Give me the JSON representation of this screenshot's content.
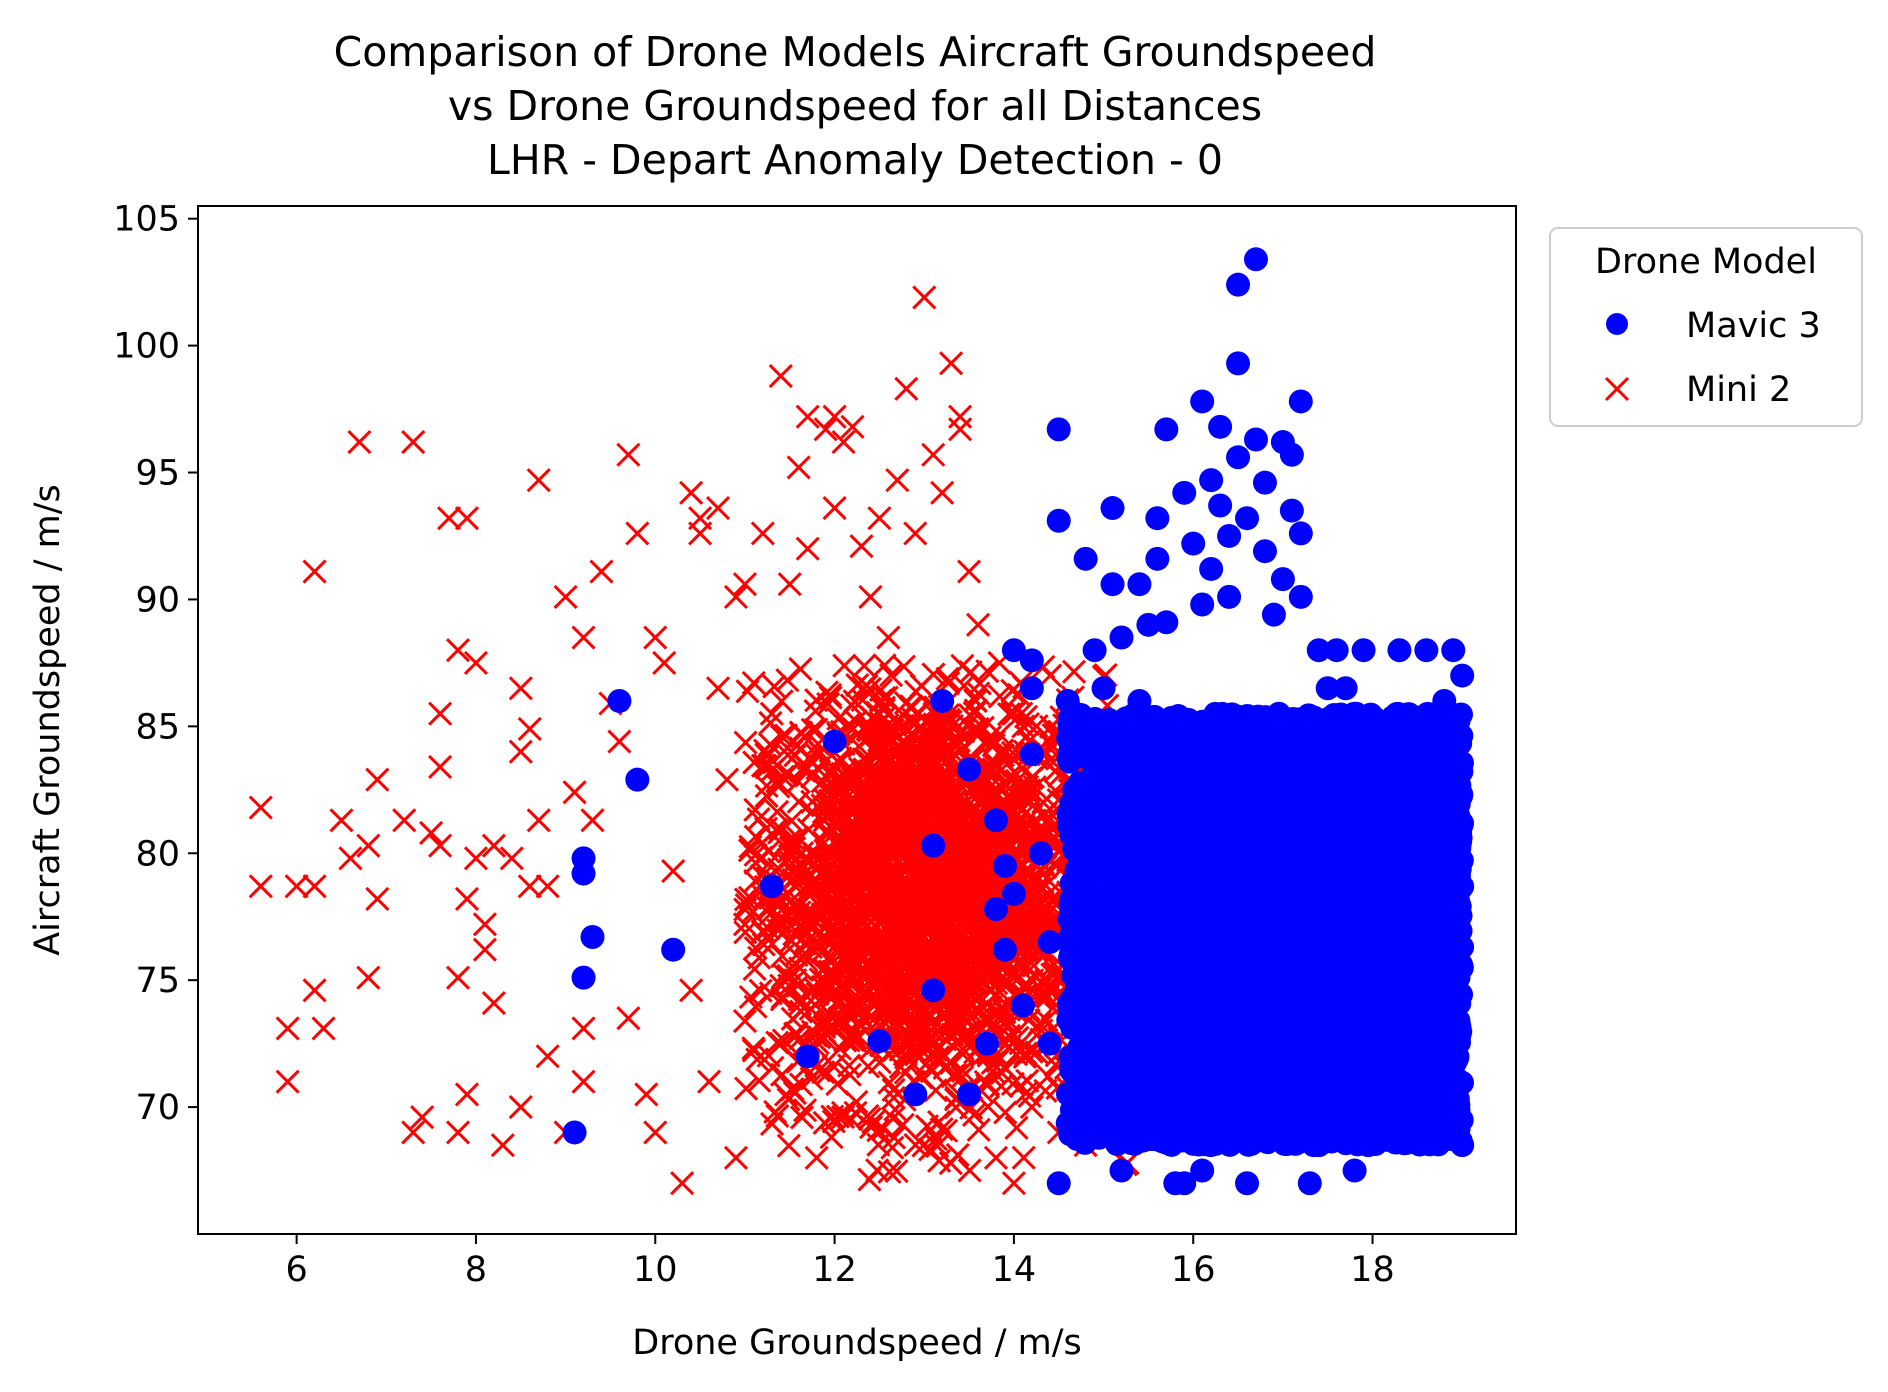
{
  "chart_data": {
    "type": "scatter",
    "title_lines": [
      "Comparison of Drone Models Aircraft Groundspeed",
      "vs Drone Groundspeed for all Distances",
      "LHR - Depart Anomaly Detection - 0"
    ],
    "xlabel": "Drone Groundspeed / m/s",
    "ylabel": "Aircraft Groundspeed / m/s",
    "xlim": [
      4.9,
      19.6
    ],
    "ylim": [
      65.0,
      105.5
    ],
    "x_ticks": [
      6,
      8,
      10,
      12,
      14,
      16,
      18
    ],
    "x_tick_labels": [
      "6",
      "8",
      "10",
      "12",
      "14",
      "16",
      "18"
    ],
    "y_ticks": [
      70,
      75,
      80,
      85,
      90,
      95,
      100,
      105
    ],
    "y_tick_labels": [
      "70",
      "75",
      "80",
      "85",
      "90",
      "95",
      "100",
      "105"
    ],
    "grid": false,
    "legend": {
      "title": "Drone Model",
      "placement": "outside-upper-right",
      "entries": [
        {
          "name": "Mavic 3",
          "marker": "circle",
          "color": "#0000ff"
        },
        {
          "name": "Mini 2",
          "marker": "x",
          "color": "#ff0000"
        }
      ]
    },
    "series": [
      {
        "name": "Mavic 3",
        "marker": "circle",
        "color": "#0000ff",
        "points": [
          [
            9.1,
            69.0
          ],
          [
            9.2,
            79.8
          ],
          [
            9.2,
            79.2
          ],
          [
            9.3,
            76.7
          ],
          [
            9.2,
            75.1
          ],
          [
            9.6,
            86.0
          ],
          [
            9.8,
            82.9
          ],
          [
            10.2,
            76.2
          ],
          [
            11.3,
            78.7
          ],
          [
            11.7,
            72.0
          ],
          [
            12.0,
            84.4
          ],
          [
            12.5,
            72.6
          ],
          [
            12.9,
            70.5
          ],
          [
            13.1,
            80.3
          ],
          [
            13.1,
            74.6
          ],
          [
            13.2,
            86.0
          ],
          [
            13.5,
            83.3
          ],
          [
            13.5,
            70.5
          ],
          [
            13.7,
            72.5
          ],
          [
            13.8,
            77.8
          ],
          [
            13.8,
            81.3
          ],
          [
            13.9,
            79.5
          ],
          [
            13.9,
            76.2
          ],
          [
            14.0,
            88.0
          ],
          [
            14.0,
            78.4
          ],
          [
            14.1,
            74.0
          ],
          [
            14.2,
            87.6
          ],
          [
            14.2,
            86.5
          ],
          [
            14.2,
            83.9
          ],
          [
            14.3,
            80.0
          ],
          [
            14.4,
            76.5
          ],
          [
            14.4,
            72.5
          ],
          [
            14.5,
            96.7
          ],
          [
            14.5,
            93.1
          ],
          [
            14.5,
            67.0
          ],
          [
            14.6,
            86.0
          ],
          [
            14.7,
            82.2
          ],
          [
            14.7,
            79.3
          ],
          [
            14.7,
            74.6
          ],
          [
            14.7,
            71.0
          ],
          [
            14.8,
            91.6
          ],
          [
            14.9,
            88.0
          ],
          [
            14.9,
            85.0
          ],
          [
            15.0,
            86.5
          ],
          [
            15.0,
            80.5
          ],
          [
            15.0,
            77.0
          ],
          [
            15.0,
            73.5
          ],
          [
            15.0,
            69.2
          ],
          [
            15.1,
            93.6
          ],
          [
            15.1,
            90.6
          ],
          [
            15.2,
            88.5
          ],
          [
            15.2,
            82.6
          ],
          [
            15.2,
            67.5
          ],
          [
            15.3,
            75.0
          ],
          [
            15.4,
            90.6
          ],
          [
            15.4,
            86.0
          ],
          [
            15.5,
            89.0
          ],
          [
            15.6,
            93.2
          ],
          [
            15.6,
            91.6
          ],
          [
            15.7,
            96.7
          ],
          [
            15.7,
            89.1
          ],
          [
            15.8,
            83.0
          ],
          [
            15.8,
            67.0
          ],
          [
            15.9,
            94.2
          ],
          [
            15.9,
            67.0
          ],
          [
            16.0,
            92.2
          ],
          [
            16.1,
            97.8
          ],
          [
            16.1,
            89.8
          ],
          [
            16.1,
            67.5
          ],
          [
            16.2,
            94.7
          ],
          [
            16.2,
            91.2
          ],
          [
            16.3,
            96.8
          ],
          [
            16.3,
            93.7
          ],
          [
            16.4,
            92.5
          ],
          [
            16.4,
            90.1
          ],
          [
            16.5,
            102.4
          ],
          [
            16.5,
            99.3
          ],
          [
            16.5,
            95.6
          ],
          [
            16.6,
            93.2
          ],
          [
            16.6,
            67.0
          ],
          [
            16.7,
            103.4
          ],
          [
            16.7,
            96.3
          ],
          [
            16.8,
            94.6
          ],
          [
            16.8,
            91.9
          ],
          [
            16.9,
            89.4
          ],
          [
            17.0,
            96.2
          ],
          [
            17.0,
            90.8
          ],
          [
            17.1,
            95.7
          ],
          [
            17.1,
            93.5
          ],
          [
            17.2,
            97.8
          ],
          [
            17.2,
            92.6
          ],
          [
            17.2,
            90.1
          ],
          [
            17.3,
            67.0
          ],
          [
            17.4,
            88.0
          ],
          [
            17.5,
            86.5
          ],
          [
            17.6,
            88.0
          ],
          [
            17.6,
            84.6
          ],
          [
            17.7,
            86.5
          ],
          [
            17.8,
            67.5
          ],
          [
            17.9,
            88.0
          ],
          [
            18.3,
            88.0
          ],
          [
            18.6,
            88.0
          ],
          [
            18.8,
            86.0
          ],
          [
            18.9,
            88.0
          ],
          [
            19.0,
            87.0
          ],
          [
            19.0,
            68.5
          ]
        ],
        "dense_region": {
          "x": [
            14.6,
            19.0
          ],
          "y": [
            68.5,
            85.5
          ],
          "base_x": 15.3
        }
      },
      {
        "name": "Mini 2",
        "marker": "x",
        "color": "#ff0000",
        "points": [
          [
            5.6,
            81.8
          ],
          [
            5.6,
            78.7
          ],
          [
            5.9,
            73.1
          ],
          [
            5.9,
            71.0
          ],
          [
            6.0,
            78.7
          ],
          [
            6.2,
            78.7
          ],
          [
            6.2,
            91.1
          ],
          [
            6.2,
            74.6
          ],
          [
            6.3,
            73.1
          ],
          [
            6.5,
            81.3
          ],
          [
            6.6,
            79.8
          ],
          [
            6.7,
            96.2
          ],
          [
            6.8,
            80.3
          ],
          [
            6.8,
            75.1
          ],
          [
            6.9,
            82.9
          ],
          [
            6.9,
            78.2
          ],
          [
            7.2,
            81.3
          ],
          [
            7.3,
            69.0
          ],
          [
            7.3,
            96.2
          ],
          [
            7.4,
            69.6
          ],
          [
            7.5,
            80.8
          ],
          [
            7.6,
            85.5
          ],
          [
            7.6,
            80.3
          ],
          [
            7.6,
            83.4
          ],
          [
            7.7,
            93.2
          ],
          [
            7.8,
            88.0
          ],
          [
            7.8,
            69.0
          ],
          [
            7.8,
            75.1
          ],
          [
            7.9,
            93.2
          ],
          [
            7.9,
            70.5
          ],
          [
            7.9,
            78.2
          ],
          [
            8.0,
            87.5
          ],
          [
            8.0,
            79.8
          ],
          [
            8.1,
            77.2
          ],
          [
            8.1,
            76.2
          ],
          [
            8.2,
            74.1
          ],
          [
            8.2,
            80.3
          ],
          [
            8.3,
            68.5
          ],
          [
            8.4,
            79.8
          ],
          [
            8.5,
            84.0
          ],
          [
            8.5,
            86.5
          ],
          [
            8.5,
            70.0
          ],
          [
            8.6,
            84.9
          ],
          [
            8.6,
            78.7
          ],
          [
            8.7,
            94.7
          ],
          [
            8.7,
            81.3
          ],
          [
            8.8,
            72.0
          ],
          [
            8.8,
            78.7
          ],
          [
            9.0,
            90.1
          ],
          [
            9.0,
            69.0
          ],
          [
            9.1,
            82.4
          ],
          [
            9.2,
            88.5
          ],
          [
            9.2,
            73.1
          ],
          [
            9.2,
            71.0
          ],
          [
            9.3,
            81.3
          ],
          [
            9.4,
            91.1
          ],
          [
            9.5,
            85.9
          ],
          [
            9.6,
            84.4
          ],
          [
            9.7,
            95.7
          ],
          [
            9.7,
            73.5
          ],
          [
            9.8,
            92.6
          ],
          [
            9.9,
            70.5
          ],
          [
            10.0,
            88.5
          ],
          [
            10.0,
            69.0
          ],
          [
            10.1,
            87.5
          ],
          [
            10.2,
            79.3
          ],
          [
            10.3,
            67.0
          ],
          [
            10.4,
            94.2
          ],
          [
            10.4,
            74.6
          ],
          [
            10.5,
            93.2
          ],
          [
            10.5,
            92.6
          ],
          [
            10.6,
            71.0
          ],
          [
            10.7,
            93.6
          ],
          [
            10.7,
            86.5
          ],
          [
            10.8,
            82.9
          ],
          [
            10.9,
            90.1
          ],
          [
            10.9,
            68.0
          ],
          [
            11.0,
            90.6
          ],
          [
            11.0,
            77.2
          ],
          [
            11.2,
            92.6
          ],
          [
            11.3,
            85.5
          ],
          [
            11.4,
            98.8
          ],
          [
            11.4,
            72.5
          ],
          [
            11.5,
            90.6
          ],
          [
            11.6,
            95.2
          ],
          [
            11.7,
            92.0
          ],
          [
            11.7,
            97.2
          ],
          [
            11.8,
            68.0
          ],
          [
            11.9,
            96.7
          ],
          [
            12.0,
            93.6
          ],
          [
            12.0,
            97.2
          ],
          [
            12.1,
            96.2
          ],
          [
            12.2,
            96.8
          ],
          [
            12.3,
            92.1
          ],
          [
            12.4,
            90.1
          ],
          [
            12.5,
            93.2
          ],
          [
            12.6,
            88.5
          ],
          [
            12.7,
            94.7
          ],
          [
            12.8,
            98.3
          ],
          [
            12.9,
            92.6
          ],
          [
            13.0,
            101.9
          ],
          [
            13.1,
            95.7
          ],
          [
            13.2,
            94.2
          ],
          [
            13.3,
            99.3
          ],
          [
            13.4,
            97.2
          ],
          [
            13.4,
            96.7
          ],
          [
            13.5,
            91.1
          ],
          [
            13.6,
            89.0
          ],
          [
            13.8,
            68.0
          ],
          [
            14.0,
            67.0
          ],
          [
            14.2,
            70.0
          ],
          [
            14.5,
            69.0
          ],
          [
            14.8,
            68.5
          ]
        ],
        "dense_region": {
          "x": [
            11.0,
            15.5
          ],
          "y": [
            67.0,
            87.5
          ],
          "center_x": 13.0,
          "center_y": 78.5
        }
      }
    ]
  }
}
